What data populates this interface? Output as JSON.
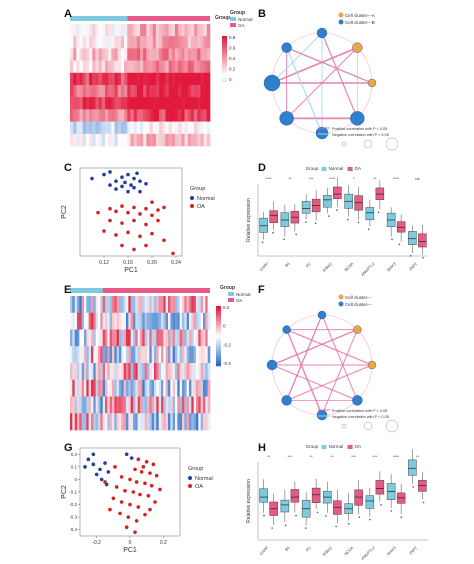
{
  "panels": {
    "A": "A",
    "B": "B",
    "C": "C",
    "D": "D",
    "E": "E",
    "F": "F",
    "G": "G",
    "H": "H"
  },
  "colors": {
    "normal": "#7ecbe0",
    "oa": "#e85a85",
    "pca_normal": "#1f3fa0",
    "pca_oa": "#d62020",
    "cluster_a": "#f0a24c",
    "cluster_b": "#2f7fcf",
    "pos_edge": "#e56fa4",
    "neg_edge": "#9fd6ea"
  },
  "heatmap_top": {
    "legend_group_title": "Group",
    "legend_normal": "Normal",
    "legend_oa": "OA",
    "scale_labels": [
      "0.8",
      "0.6",
      "0.4",
      "0.2",
      "0"
    ]
  },
  "heatmap_bottom": {
    "legend_group_title": "Group",
    "legend_normal": "Normal",
    "legend_oa": "OA",
    "scale_labels": [
      "0.2",
      "0",
      "-0.2",
      "-0.4"
    ]
  },
  "network_top": {
    "legend_a": "Cell cluster---A",
    "legend_b": "Cell cluster---B",
    "pos_label": "Positive correlation with P < 0.05",
    "neg_label": "Negative correlation with P < 0.05"
  },
  "network_bottom": {
    "legend_a": "Cell cluster---",
    "legend_b": "Cell cluster---",
    "pos_label": "Positive correlation with P < 0.05",
    "neg_label": "Negative correlation with P < 0.05"
  },
  "chart_data": [
    {
      "panel": "C",
      "type": "scatter",
      "xlabel": "PC1",
      "ylabel": "PC2",
      "xlim": [
        0.08,
        0.25
      ],
      "ylim": [
        -0.32,
        0.35
      ],
      "xticks": [
        "0.12",
        "0.16",
        "0.20",
        "0.24"
      ],
      "legend_title": "Group",
      "series": [
        {
          "name": "Normal",
          "points": [
            [
              0.12,
              0.3
            ],
            [
              0.13,
              0.32
            ],
            [
              0.14,
              0.25
            ],
            [
              0.15,
              0.28
            ],
            [
              0.155,
              0.24
            ],
            [
              0.16,
              0.3
            ],
            [
              0.165,
              0.22
            ],
            [
              0.17,
              0.27
            ],
            [
              0.175,
              0.31
            ],
            [
              0.18,
              0.25
            ],
            [
              0.14,
              0.19
            ],
            [
              0.15,
              0.21
            ],
            [
              0.16,
              0.17
            ],
            [
              0.17,
              0.2
            ],
            [
              0.18,
              0.17
            ],
            [
              0.13,
              0.22
            ],
            [
              0.19,
              0.23
            ],
            [
              0.1,
              0.27
            ]
          ]
        },
        {
          "name": "OA",
          "points": [
            [
              0.13,
              0.04
            ],
            [
              0.14,
              0.02
            ],
            [
              0.15,
              0.06
            ],
            [
              0.16,
              0.01
            ],
            [
              0.17,
              0.05
            ],
            [
              0.18,
              0.0
            ],
            [
              0.19,
              0.04
            ],
            [
              0.2,
              -0.01
            ],
            [
              0.21,
              0.03
            ],
            [
              0.22,
              0.05
            ],
            [
              0.13,
              -0.05
            ],
            [
              0.15,
              -0.07
            ],
            [
              0.17,
              -0.05
            ],
            [
              0.19,
              -0.08
            ],
            [
              0.21,
              -0.05
            ],
            [
              0.12,
              -0.13
            ],
            [
              0.14,
              -0.16
            ],
            [
              0.16,
              -0.14
            ],
            [
              0.18,
              -0.17
            ],
            [
              0.2,
              -0.15
            ],
            [
              0.15,
              -0.24
            ],
            [
              0.17,
              -0.27
            ],
            [
              0.19,
              -0.24
            ],
            [
              0.22,
              -0.2
            ],
            [
              0.235,
              -0.3
            ],
            [
              0.2,
              0.09
            ],
            [
              0.11,
              0.01
            ]
          ]
        }
      ]
    },
    {
      "panel": "D",
      "type": "box",
      "ylabel": "Relative expression",
      "legend_title": "Group",
      "legend": [
        "Normal",
        "OA"
      ],
      "categories": [
        "CHPF",
        "B4",
        "PC",
        "IKBKG",
        "NCOA",
        "ANGPTL2",
        "IRAK3",
        "ZNF2"
      ],
      "significance": [
        "****",
        "**",
        "***",
        "****",
        "*",
        "**",
        "****",
        "ns"
      ],
      "series": [
        {
          "name": "Normal",
          "medians": [
            0.42,
            0.5,
            0.66,
            0.78,
            0.76,
            0.6,
            0.5,
            0.24
          ]
        },
        {
          "name": "OA",
          "medians": [
            0.56,
            0.54,
            0.7,
            0.86,
            0.74,
            0.86,
            0.4,
            0.2
          ]
        }
      ]
    },
    {
      "panel": "G",
      "type": "scatter",
      "xlabel": "PC1",
      "ylabel": "PC2",
      "xlim": [
        -0.3,
        0.3
      ],
      "ylim": [
        -0.45,
        0.25
      ],
      "xticks": [
        "-0.2",
        "0",
        "0.2"
      ],
      "yticks": [
        "0.2",
        "0.1",
        "0",
        "-0.1",
        "-0.2",
        "-0.3",
        "-0.4"
      ],
      "legend_title": "Group",
      "series": [
        {
          "name": "Normal",
          "points": [
            [
              -0.25,
              0.16
            ],
            [
              -0.22,
              0.12
            ],
            [
              -0.18,
              0.08
            ],
            [
              -0.15,
              0.13
            ],
            [
              -0.2,
              0.04
            ],
            [
              -0.17,
              0.0
            ],
            [
              -0.13,
              0.06
            ],
            [
              -0.27,
              0.1
            ],
            [
              -0.02,
              0.2
            ],
            [
              0.01,
              0.17
            ],
            [
              -0.22,
              0.2
            ],
            [
              -0.14,
              -0.04
            ]
          ]
        },
        {
          "name": "OA",
          "points": [
            [
              0.05,
              0.16
            ],
            [
              0.1,
              0.14
            ],
            [
              0.14,
              0.12
            ],
            [
              0.03,
              0.08
            ],
            [
              0.07,
              0.06
            ],
            [
              0.12,
              0.05
            ],
            [
              0.16,
              0.03
            ],
            [
              -0.05,
              0.02
            ],
            [
              0.0,
              0.0
            ],
            [
              0.04,
              -0.02
            ],
            [
              0.09,
              -0.03
            ],
            [
              0.13,
              -0.05
            ],
            [
              -0.08,
              -0.06
            ],
            [
              -0.03,
              -0.09
            ],
            [
              0.02,
              -0.1
            ],
            [
              0.06,
              -0.12
            ],
            [
              0.11,
              -0.13
            ],
            [
              -0.1,
              -0.15
            ],
            [
              -0.05,
              -0.18
            ],
            [
              0.0,
              -0.2
            ],
            [
              0.05,
              -0.22
            ],
            [
              0.15,
              -0.18
            ],
            [
              -0.12,
              -0.24
            ],
            [
              -0.06,
              -0.27
            ],
            [
              -0.01,
              -0.3
            ],
            [
              0.04,
              -0.33
            ],
            [
              0.09,
              -0.28
            ],
            [
              -0.02,
              -0.38
            ],
            [
              0.03,
              -0.42
            ],
            [
              0.18,
              -0.08
            ],
            [
              -0.15,
              -0.02
            ],
            [
              0.12,
              -0.24
            ],
            [
              0.08,
              0.1
            ],
            [
              -0.09,
              0.1
            ]
          ]
        }
      ]
    },
    {
      "panel": "H",
      "type": "box",
      "ylabel": "Relative expression",
      "legend_title": "Group",
      "legend": [
        "Normal",
        "OA"
      ],
      "categories": [
        "CHPF",
        "B4",
        "PC",
        "IKBKG",
        "NCOA",
        "ANGPTL2",
        "IRAK3",
        "ZNF2"
      ],
      "significance": [
        "**",
        "***",
        "**",
        "**",
        "***",
        "***",
        "****",
        "**"
      ],
      "series": [
        {
          "name": "Normal",
          "medians": [
            0.55,
            0.45,
            0.4,
            0.55,
            0.4,
            0.5,
            0.62,
            0.92
          ]
        },
        {
          "name": "OA",
          "medians": [
            0.4,
            0.55,
            0.58,
            0.42,
            0.55,
            0.66,
            0.54,
            0.7
          ]
        }
      ]
    }
  ]
}
